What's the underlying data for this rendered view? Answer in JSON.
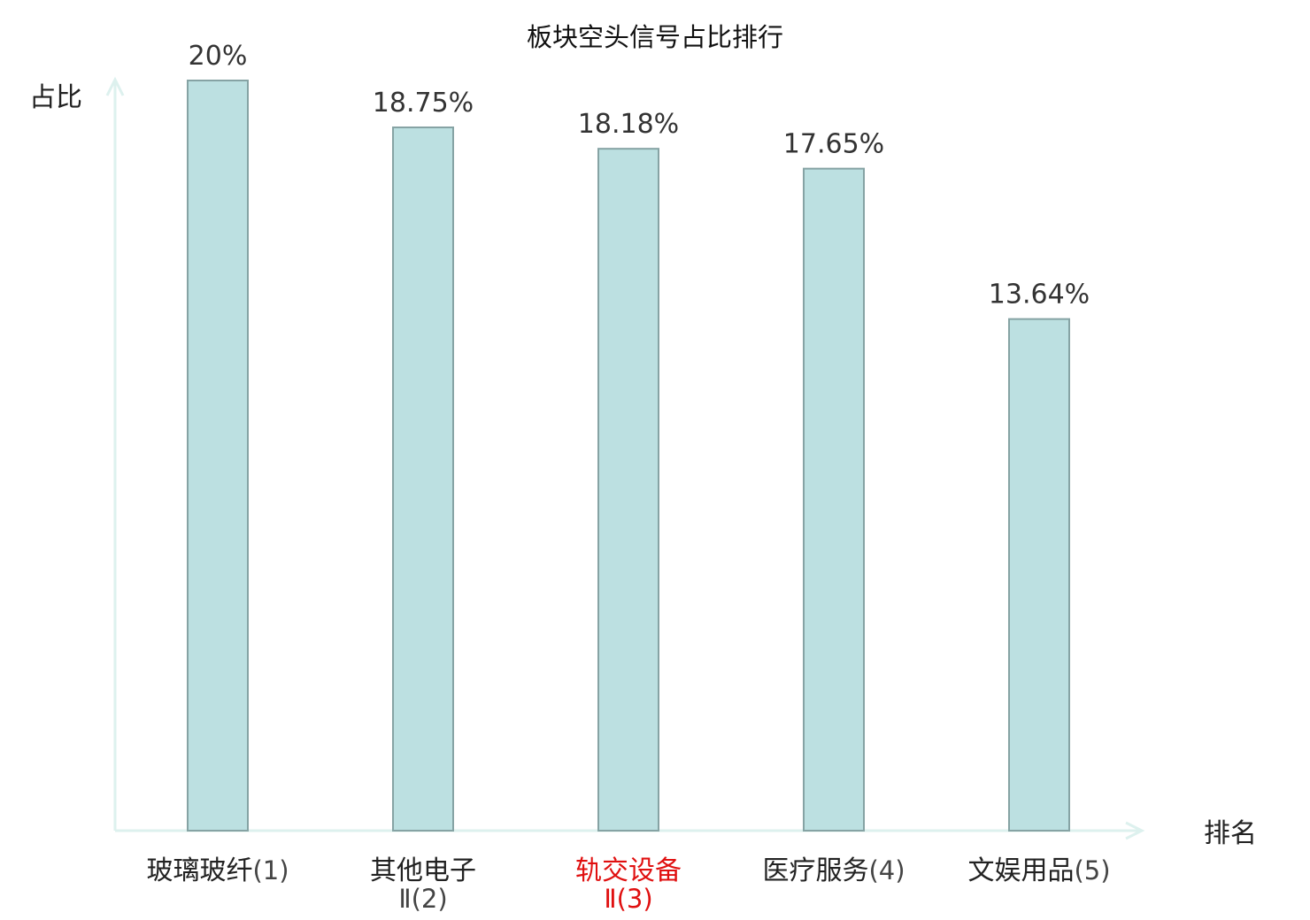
{
  "chart_data": {
    "type": "bar",
    "title": "板块空头信号占比排行",
    "xlabel": "排名",
    "ylabel": "占比",
    "categories": [
      "玻璃玻纤(1)",
      "其他电子Ⅱ(2)",
      "轨交设备Ⅱ(3)",
      "医疗服务(4)",
      "文娱用品(5)"
    ],
    "category_labels": [
      {
        "name": "玻璃玻纤",
        "suffix": "(1)",
        "line2": "",
        "highlight": false
      },
      {
        "name": "其他电子",
        "suffix": "",
        "line2": "Ⅱ(2)",
        "highlight": false
      },
      {
        "name": "轨交设备",
        "suffix": "",
        "line2": "Ⅱ(3)",
        "highlight": true
      },
      {
        "name": "医疗服务",
        "suffix": "(4)",
        "line2": "",
        "highlight": false
      },
      {
        "name": "文娱用品",
        "suffix": "(5)",
        "line2": "",
        "highlight": false
      }
    ],
    "values": [
      20,
      18.75,
      18.18,
      17.65,
      13.64
    ],
    "value_labels": [
      "20%",
      "18.75%",
      "18.18%",
      "17.65%",
      "13.64%"
    ],
    "ylim": [
      0,
      20
    ],
    "grid": false,
    "legend": "none"
  },
  "colors": {
    "bar_fill": "#bce0e1",
    "bar_stroke": "#86a3a4",
    "axis": "#ddf1ee",
    "highlight": "#e01010",
    "label_text": "#222222",
    "suffix_text": "#444444",
    "value_text": "#333333"
  }
}
